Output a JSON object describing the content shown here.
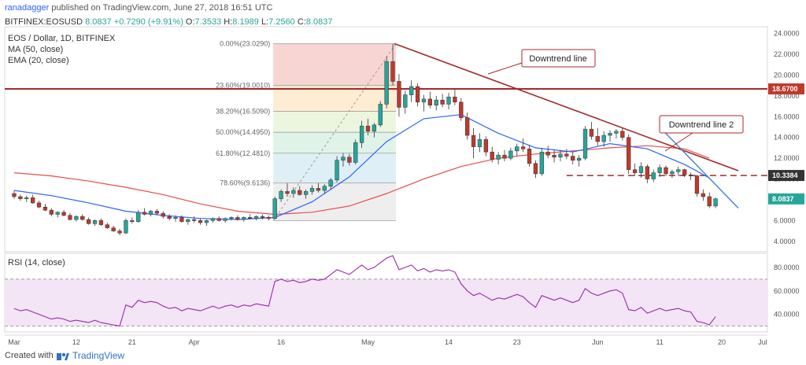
{
  "header": {
    "author": "ranadagger",
    "published_text": "published on TradingView.com, June 27, 2018 16:51 UTC"
  },
  "ohlc": {
    "symbol": "BITFINEX:EOSUSD",
    "values": [
      {
        "label": "O:",
        "value": "7.3533"
      },
      {
        "label": "H:",
        "value": "8.1989"
      },
      {
        "label": "L:",
        "value": "7.2560"
      },
      {
        "label": "C:",
        "value": "8.0837"
      }
    ],
    "price": "8.0837",
    "change": "+0.7290 (+9.91%)"
  },
  "legend": {
    "title": "EOS / Dollar, 1D, BITFINEX",
    "ma": "MA (50, close)",
    "ema": "EMA (20, close)",
    "rsi": "RSI (14, close)"
  },
  "footer": {
    "created_with": "Created with",
    "brand": "TradingView"
  },
  "colors": {
    "up": "#26a69a",
    "down": "#c0392b",
    "ma": "#e84d4d",
    "ema": "#2962ff",
    "trend": "#a52a2a",
    "rsi": "#9c27b0",
    "tag_red": "#c0392b",
    "tag_dark": "#333333"
  },
  "chart_data": [
    {
      "type": "candlestick",
      "y_axis": {
        "ticks": [
          "24.0000",
          "22.0000",
          "20.0000",
          "18.0000",
          "16.0000",
          "14.0000",
          "12.0000",
          "10.0000",
          "6.0000",
          "4.0000"
        ],
        "range": [
          3,
          24.2
        ]
      },
      "x_axis": {
        "ticks": [
          "Mar",
          "12",
          "21",
          "Apr",
          "16",
          "May",
          "14",
          "23",
          "Jun",
          "11",
          "20",
          "Jul"
        ]
      },
      "price_tags": [
        {
          "value": 18.67,
          "label": "18.6700",
          "style": "red"
        },
        {
          "value": 10.3384,
          "label": "10.3384",
          "style": "dark"
        },
        {
          "value": 8.0837,
          "label": "8.0837",
          "style": "green"
        }
      ],
      "fibonacci": [
        {
          "level": "0.00%(23.0290)",
          "price": 23.029
        },
        {
          "level": "23.60%(19.0010)",
          "price": 19.001
        },
        {
          "level": "38.20%(16.5090)",
          "price": 16.509
        },
        {
          "level": "50.00%(14.4950)",
          "price": 14.495
        },
        {
          "level": "61.80%(12.4810)",
          "price": 12.481
        },
        {
          "level": "78.60%(9.6136)",
          "price": 9.6136
        }
      ],
      "annotations": [
        {
          "text": "Downtrend line"
        },
        {
          "text": "Downtrend line 2"
        }
      ],
      "horizontal_lines": [
        18.67,
        10.3384
      ],
      "candles": [
        [
          8.6,
          8.9,
          8.1,
          8.3
        ],
        [
          8.3,
          8.5,
          7.9,
          8.1
        ],
        [
          8.1,
          8.4,
          7.8,
          8.2
        ],
        [
          8.2,
          8.5,
          7.6,
          7.7
        ],
        [
          7.7,
          7.9,
          7.2,
          7.3
        ],
        [
          7.3,
          7.6,
          6.9,
          7.0
        ],
        [
          7.0,
          7.2,
          6.4,
          6.6
        ],
        [
          6.6,
          6.9,
          6.3,
          6.8
        ],
        [
          6.8,
          7.0,
          6.4,
          6.5
        ],
        [
          6.5,
          6.7,
          6.0,
          6.1
        ],
        [
          6.1,
          6.5,
          5.9,
          6.4
        ],
        [
          6.4,
          6.6,
          6.0,
          6.1
        ],
        [
          6.1,
          6.3,
          5.6,
          5.7
        ],
        [
          5.7,
          6.1,
          5.5,
          6.0
        ],
        [
          6.0,
          6.2,
          5.5,
          5.6
        ],
        [
          5.6,
          5.8,
          5.2,
          5.3
        ],
        [
          5.3,
          5.5,
          4.9,
          5.0
        ],
        [
          5.0,
          5.2,
          4.6,
          4.8
        ],
        [
          4.8,
          6.2,
          4.7,
          6.0
        ],
        [
          6.0,
          6.3,
          5.7,
          5.9
        ],
        [
          5.9,
          7.0,
          5.8,
          6.8
        ],
        [
          6.8,
          7.2,
          6.5,
          6.6
        ],
        [
          6.6,
          7.0,
          6.4,
          6.9
        ],
        [
          6.9,
          7.1,
          6.5,
          6.7
        ],
        [
          6.7,
          6.9,
          6.2,
          6.4
        ],
        [
          6.4,
          6.6,
          6.0,
          6.2
        ],
        [
          6.2,
          6.5,
          5.9,
          6.3
        ],
        [
          6.3,
          6.5,
          5.8,
          5.9
        ],
        [
          5.9,
          6.2,
          5.6,
          6.1
        ],
        [
          6.1,
          6.4,
          5.8,
          6.0
        ],
        [
          6.0,
          6.2,
          5.6,
          5.8
        ],
        [
          5.8,
          6.1,
          5.5,
          6.0
        ],
        [
          6.0,
          6.3,
          5.8,
          6.2
        ],
        [
          6.2,
          6.4,
          5.9,
          6.0
        ],
        [
          6.0,
          6.3,
          5.8,
          6.2
        ],
        [
          6.2,
          6.4,
          6.0,
          6.3
        ],
        [
          6.3,
          6.5,
          6.0,
          6.1
        ],
        [
          6.1,
          6.4,
          5.9,
          6.3
        ],
        [
          6.3,
          6.6,
          6.1,
          6.2
        ],
        [
          6.2,
          6.5,
          6.0,
          6.4
        ],
        [
          6.4,
          6.6,
          6.1,
          6.3
        ],
        [
          6.3,
          6.5,
          6.0,
          6.2
        ],
        [
          6.2,
          8.3,
          6.1,
          8.1
        ],
        [
          8.1,
          9.0,
          7.8,
          8.8
        ],
        [
          8.8,
          9.6,
          8.3,
          8.6
        ],
        [
          8.6,
          9.2,
          8.2,
          8.9
        ],
        [
          8.9,
          9.3,
          8.4,
          8.5
        ],
        [
          8.5,
          9.0,
          8.1,
          8.8
        ],
        [
          8.8,
          9.4,
          8.5,
          9.1
        ],
        [
          9.1,
          9.6,
          8.7,
          8.9
        ],
        [
          8.9,
          9.5,
          8.6,
          9.3
        ],
        [
          9.3,
          10.1,
          9.0,
          9.9
        ],
        [
          9.9,
          12.2,
          9.7,
          11.8
        ],
        [
          11.8,
          12.5,
          11.2,
          12.1
        ],
        [
          12.1,
          12.4,
          11.3,
          11.6
        ],
        [
          11.6,
          13.8,
          11.4,
          13.5
        ],
        [
          13.5,
          15.6,
          13.0,
          15.1
        ],
        [
          15.1,
          15.8,
          14.2,
          14.6
        ],
        [
          14.6,
          15.4,
          14.0,
          15.2
        ],
        [
          15.2,
          17.5,
          15.0,
          17.2
        ],
        [
          17.2,
          21.8,
          16.8,
          21.3
        ],
        [
          21.3,
          23.0,
          19.0,
          19.4
        ],
        [
          19.4,
          20.1,
          16.0,
          16.9
        ],
        [
          16.9,
          18.5,
          16.3,
          18.1
        ],
        [
          18.1,
          19.5,
          17.4,
          18.9
        ],
        [
          18.9,
          19.2,
          17.0,
          17.4
        ],
        [
          17.4,
          18.1,
          16.5,
          17.7
        ],
        [
          17.7,
          18.4,
          16.8,
          17.1
        ],
        [
          17.1,
          18.0,
          16.6,
          17.6
        ],
        [
          17.6,
          18.2,
          16.9,
          17.2
        ],
        [
          17.2,
          18.3,
          16.7,
          17.9
        ],
        [
          17.9,
          18.6,
          17.1,
          17.4
        ],
        [
          17.4,
          17.8,
          15.6,
          15.9
        ],
        [
          15.9,
          16.4,
          13.8,
          14.2
        ],
        [
          14.2,
          14.9,
          12.0,
          13.1
        ],
        [
          13.1,
          14.4,
          12.6,
          13.8
        ],
        [
          13.8,
          14.1,
          12.2,
          12.6
        ],
        [
          12.6,
          13.1,
          11.6,
          11.9
        ],
        [
          11.9,
          12.6,
          11.4,
          12.3
        ],
        [
          12.3,
          12.8,
          11.7,
          12.0
        ],
        [
          12.0,
          13.0,
          11.8,
          12.7
        ],
        [
          12.7,
          13.4,
          12.2,
          13.1
        ],
        [
          13.1,
          13.9,
          12.6,
          12.9
        ],
        [
          12.9,
          13.3,
          11.2,
          11.5
        ],
        [
          11.5,
          11.8,
          10.1,
          10.5
        ],
        [
          10.5,
          13.0,
          10.3,
          12.6
        ],
        [
          12.6,
          13.2,
          12.0,
          12.3
        ],
        [
          12.3,
          12.8,
          11.6,
          12.1
        ],
        [
          12.1,
          12.8,
          11.7,
          12.4
        ],
        [
          12.4,
          12.9,
          11.9,
          12.2
        ],
        [
          12.2,
          12.6,
          11.4,
          11.8
        ],
        [
          11.8,
          12.3,
          11.2,
          12.0
        ],
        [
          12.0,
          15.1,
          11.8,
          14.8
        ],
        [
          14.8,
          15.5,
          13.8,
          14.1
        ],
        [
          14.1,
          14.9,
          13.2,
          13.6
        ],
        [
          13.6,
          14.6,
          13.1,
          14.2
        ],
        [
          14.2,
          14.7,
          13.6,
          14.4
        ],
        [
          14.4,
          14.8,
          13.9,
          14.6
        ],
        [
          14.6,
          14.9,
          13.7,
          14.0
        ],
        [
          14.0,
          14.3,
          10.5,
          10.9
        ],
        [
          10.9,
          11.5,
          10.3,
          10.6
        ],
        [
          10.6,
          11.6,
          10.1,
          11.2
        ],
        [
          11.2,
          11.4,
          9.6,
          10.0
        ],
        [
          10.0,
          10.9,
          9.7,
          10.6
        ],
        [
          10.6,
          11.4,
          10.2,
          11.1
        ],
        [
          11.1,
          11.3,
          10.3,
          10.5
        ],
        [
          10.5,
          10.9,
          10.1,
          10.7
        ],
        [
          10.7,
          11.2,
          10.3,
          10.9
        ],
        [
          10.9,
          11.0,
          10.2,
          10.4
        ],
        [
          10.4,
          10.6,
          9.9,
          10.3
        ],
        [
          10.3,
          10.4,
          8.3,
          8.6
        ],
        [
          8.6,
          9.0,
          7.9,
          8.3
        ],
        [
          8.3,
          8.7,
          7.2,
          7.4
        ],
        [
          7.4,
          8.2,
          7.2,
          8.1
        ]
      ],
      "ma50": [
        [
          0,
          10.6
        ],
        [
          6,
          10.3
        ],
        [
          12,
          9.8
        ],
        [
          18,
          9.2
        ],
        [
          24,
          8.5
        ],
        [
          30,
          7.6
        ],
        [
          36,
          6.9
        ],
        [
          42,
          6.6
        ],
        [
          48,
          6.8
        ],
        [
          54,
          7.4
        ],
        [
          60,
          8.6
        ],
        [
          66,
          10.0
        ],
        [
          72,
          11.2
        ],
        [
          78,
          12.0
        ],
        [
          84,
          12.4
        ],
        [
          90,
          12.7
        ],
        [
          96,
          13.0
        ],
        [
          102,
          13.2
        ],
        [
          108,
          12.9
        ],
        [
          112,
          12.0
        ]
      ],
      "ema20": [
        [
          0,
          8.9
        ],
        [
          6,
          8.4
        ],
        [
          12,
          7.7
        ],
        [
          18,
          6.9
        ],
        [
          24,
          6.5
        ],
        [
          30,
          6.2
        ],
        [
          36,
          6.1
        ],
        [
          42,
          6.3
        ],
        [
          48,
          7.8
        ],
        [
          54,
          10.2
        ],
        [
          60,
          13.6
        ],
        [
          66,
          15.8
        ],
        [
          72,
          16.2
        ],
        [
          78,
          14.4
        ],
        [
          84,
          13.0
        ],
        [
          90,
          12.6
        ],
        [
          96,
          13.4
        ],
        [
          102,
          12.9
        ],
        [
          108,
          11.4
        ],
        [
          112,
          10.1
        ]
      ]
    },
    {
      "type": "line",
      "name": "RSI (14, close)",
      "y_axis": {
        "ticks": [
          "80.0000",
          "60.0000",
          "40.0000"
        ],
        "range": [
          25,
          92
        ]
      },
      "bands": [
        30,
        70
      ],
      "values": [
        45,
        43,
        44,
        42,
        40,
        38,
        36,
        37,
        36,
        34,
        35,
        34,
        33,
        35,
        33,
        32,
        31,
        30,
        48,
        46,
        52,
        50,
        51,
        50,
        47,
        45,
        46,
        43,
        45,
        44,
        43,
        45,
        47,
        45,
        47,
        48,
        46,
        48,
        47,
        49,
        48,
        47,
        68,
        70,
        68,
        69,
        67,
        68,
        70,
        69,
        70,
        74,
        78,
        76,
        74,
        78,
        82,
        78,
        80,
        84,
        88,
        90,
        78,
        80,
        82,
        77,
        79,
        76,
        78,
        77,
        78,
        76,
        66,
        60,
        56,
        58,
        55,
        52,
        54,
        53,
        55,
        57,
        55,
        50,
        46,
        56,
        54,
        52,
        54,
        52,
        50,
        52,
        62,
        58,
        56,
        58,
        60,
        61,
        58,
        44,
        43,
        46,
        41,
        43,
        45,
        43,
        44,
        45,
        43,
        42,
        34,
        33,
        31,
        38
      ]
    }
  ]
}
